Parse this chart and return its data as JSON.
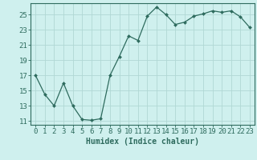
{
  "x": [
    0,
    1,
    2,
    3,
    4,
    5,
    6,
    7,
    8,
    9,
    10,
    11,
    12,
    13,
    14,
    15,
    16,
    17,
    18,
    19,
    20,
    21,
    22,
    23
  ],
  "y": [
    17.0,
    14.5,
    13.0,
    16.0,
    13.0,
    11.2,
    11.1,
    11.3,
    17.0,
    19.5,
    22.2,
    21.6,
    24.8,
    26.0,
    25.0,
    23.7,
    24.0,
    24.8,
    25.1,
    25.5,
    25.3,
    25.5,
    24.7,
    23.3
  ],
  "line_color": "#2e6b5e",
  "marker": "D",
  "marker_size": 2,
  "bg_color": "#cff0ee",
  "grid_color": "#b0d8d4",
  "xlabel": "Humidex (Indice chaleur)",
  "xlim": [
    -0.5,
    23.5
  ],
  "ylim": [
    10.5,
    26.5
  ],
  "yticks": [
    11,
    13,
    15,
    17,
    19,
    21,
    23,
    25
  ],
  "xticks": [
    0,
    1,
    2,
    3,
    4,
    5,
    6,
    7,
    8,
    9,
    10,
    11,
    12,
    13,
    14,
    15,
    16,
    17,
    18,
    19,
    20,
    21,
    22,
    23
  ],
  "tick_color": "#2e6b5e",
  "label_fontsize": 6.5,
  "xlabel_fontsize": 7,
  "axis_color": "#2e6b5e"
}
